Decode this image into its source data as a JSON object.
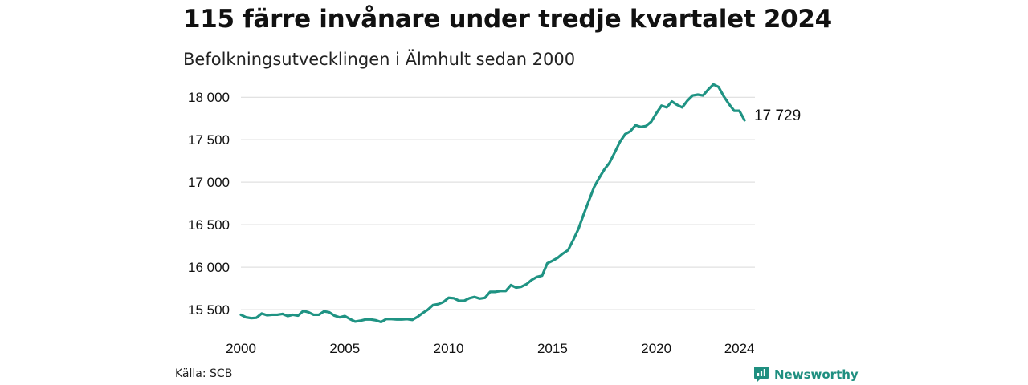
{
  "header": {
    "title": "115 färre invånare under tredje kvartalet 2024",
    "subtitle": "Befolkningsutvecklingen i Älmhult sedan 2000"
  },
  "footer": {
    "source": "Källa: SCB",
    "brand": "Newsworthy"
  },
  "colors": {
    "line": "#1f9383",
    "grid": "#d9d9d9",
    "brand": "#1f8f80"
  },
  "icons": {
    "brand_logo": "bar-chart-speech-bubble-icon"
  },
  "chart_data": {
    "type": "line",
    "title": "115 färre invånare under tredje kvartalet 2024",
    "subtitle": "Befolkningsutvecklingen i Älmhult sedan 2000",
    "xlabel": "",
    "ylabel": "",
    "x_start": 2000,
    "x_step": 0.25,
    "xlim": [
      2000,
      2024.75
    ],
    "ylim": [
      15350,
      18200
    ],
    "x_ticks": [
      2000,
      2005,
      2010,
      2015,
      2020,
      2024
    ],
    "x_tick_labels": [
      "2000",
      "2005",
      "2010",
      "2015",
      "2020",
      "2024"
    ],
    "y_ticks": [
      15500,
      16000,
      16500,
      17000,
      17500,
      18000
    ],
    "y_tick_labels": [
      "15 500",
      "16 000",
      "16 500",
      "17 000",
      "17 500",
      "18 000"
    ],
    "grid": true,
    "legend": "none",
    "end_label": "17 729",
    "series": [
      {
        "name": "",
        "values": [
          15440,
          15410,
          15400,
          15405,
          15455,
          15435,
          15440,
          15440,
          15450,
          15425,
          15440,
          15430,
          15485,
          15470,
          15440,
          15440,
          15480,
          15470,
          15430,
          15410,
          15425,
          15390,
          15360,
          15370,
          15385,
          15385,
          15375,
          15355,
          15390,
          15390,
          15385,
          15385,
          15390,
          15380,
          15415,
          15460,
          15500,
          15555,
          15565,
          15590,
          15640,
          15635,
          15605,
          15605,
          15635,
          15650,
          15630,
          15640,
          15710,
          15710,
          15720,
          15720,
          15790,
          15760,
          15770,
          15800,
          15850,
          15885,
          15900,
          16045,
          16075,
          16110,
          16160,
          16200,
          16320,
          16450,
          16620,
          16780,
          16940,
          17050,
          17150,
          17230,
          17350,
          17475,
          17565,
          17600,
          17670,
          17650,
          17660,
          17710,
          17810,
          17900,
          17880,
          17950,
          17910,
          17880,
          17960,
          18020,
          18030,
          18020,
          18090,
          18150,
          18120,
          18010,
          17920,
          17840,
          17840,
          17729
        ]
      }
    ]
  }
}
